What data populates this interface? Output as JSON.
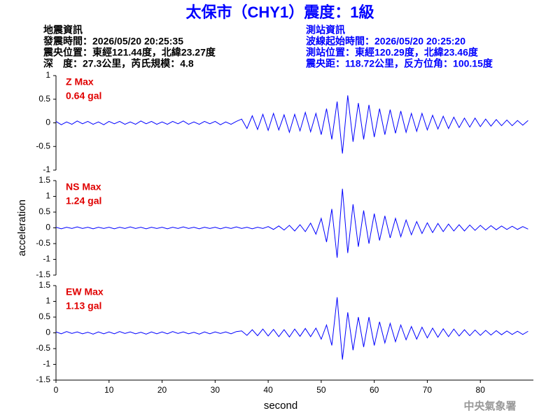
{
  "header": {
    "title": "太保市（CHY1）震度：1級",
    "left": [
      "地震資訊",
      "發震時間：2026/05/20 20:25:35",
      "震央位置：東經121.44度，北緯23.27度",
      "深　度：27.3公里，芮氏規模：4.8"
    ],
    "right": [
      "測站資訊",
      "波線起始時間：2026/05/20 20:25:20",
      "測站位置：東經120.29度，北緯23.46度",
      "震央距：118.72公里，反方位角：100.15度"
    ]
  },
  "footer": "中央氣象署",
  "chart_data": [
    {
      "type": "line",
      "annotations": [
        "Z Max",
        "0.64 gal"
      ],
      "xlim": [
        0,
        90
      ],
      "ylim": [
        -1,
        1
      ],
      "yticks": [
        -1,
        -0.5,
        0,
        0.5,
        1
      ],
      "x": [
        0,
        1,
        2,
        3,
        4,
        5,
        6,
        7,
        8,
        9,
        10,
        11,
        12,
        13,
        14,
        15,
        16,
        17,
        18,
        19,
        20,
        21,
        22,
        23,
        24,
        25,
        26,
        27,
        28,
        29,
        30,
        31,
        32,
        33,
        34,
        35,
        36,
        37,
        38,
        39,
        40,
        41,
        42,
        43,
        44,
        45,
        46,
        47,
        48,
        49,
        50,
        51,
        52,
        53,
        54,
        55,
        56,
        57,
        58,
        59,
        60,
        61,
        62,
        63,
        64,
        65,
        66,
        67,
        68,
        69,
        70,
        71,
        72,
        73,
        74,
        75,
        76,
        77,
        78,
        79,
        80,
        81,
        82,
        83,
        84,
        85,
        86,
        87,
        88,
        89
      ],
      "series": [
        {
          "color": "#0000ff",
          "values": [
            0.03,
            -0.04,
            0.02,
            -0.03,
            0.04,
            -0.02,
            0.03,
            -0.03,
            0.02,
            -0.04,
            0.03,
            -0.02,
            0.03,
            -0.03,
            0.02,
            -0.03,
            0.04,
            -0.02,
            0.03,
            -0.03,
            0.02,
            -0.03,
            0.03,
            -0.02,
            0.04,
            -0.03,
            0.02,
            -0.03,
            0.03,
            -0.02,
            0.03,
            -0.04,
            0.02,
            -0.03,
            0.03,
            0.08,
            -0.12,
            0.15,
            -0.14,
            0.18,
            -0.16,
            0.2,
            -0.15,
            0.17,
            -0.2,
            0.18,
            -0.17,
            0.22,
            -0.19,
            0.2,
            -0.25,
            0.3,
            -0.35,
            0.45,
            -0.65,
            0.58,
            -0.4,
            0.42,
            -0.35,
            0.38,
            -0.3,
            0.3,
            -0.25,
            0.28,
            -0.22,
            0.25,
            -0.2,
            0.2,
            -0.18,
            0.2,
            -0.15,
            0.16,
            -0.13,
            0.14,
            -0.12,
            0.12,
            -0.1,
            0.1,
            -0.09,
            0.1,
            -0.08,
            0.08,
            -0.07,
            0.07,
            -0.06,
            0.06,
            -0.06,
            0.05,
            -0.05,
            0.05
          ]
        }
      ]
    },
    {
      "type": "line",
      "annotations": [
        "NS Max",
        "1.24 gal"
      ],
      "ylabel": "acceleration",
      "xlim": [
        0,
        90
      ],
      "ylim": [
        -1.5,
        1.5
      ],
      "yticks": [
        -1.5,
        -1,
        -0.5,
        0,
        0.5,
        1,
        1.5
      ],
      "x": [
        0,
        1,
        2,
        3,
        4,
        5,
        6,
        7,
        8,
        9,
        10,
        11,
        12,
        13,
        14,
        15,
        16,
        17,
        18,
        19,
        20,
        21,
        22,
        23,
        24,
        25,
        26,
        27,
        28,
        29,
        30,
        31,
        32,
        33,
        34,
        35,
        36,
        37,
        38,
        39,
        40,
        41,
        42,
        43,
        44,
        45,
        46,
        47,
        48,
        49,
        50,
        51,
        52,
        53,
        54,
        55,
        56,
        57,
        58,
        59,
        60,
        61,
        62,
        63,
        64,
        65,
        66,
        67,
        68,
        69,
        70,
        71,
        72,
        73,
        74,
        75,
        76,
        77,
        78,
        79,
        80,
        81,
        82,
        83,
        84,
        85,
        86,
        87,
        88,
        89
      ],
      "series": [
        {
          "color": "#0000ff",
          "values": [
            0.02,
            -0.03,
            0.02,
            -0.02,
            0.03,
            -0.02,
            0.02,
            -0.03,
            0.02,
            -0.02,
            0.02,
            -0.03,
            0.02,
            -0.02,
            0.03,
            -0.02,
            0.02,
            -0.03,
            0.02,
            -0.02,
            0.02,
            -0.03,
            0.02,
            -0.02,
            0.03,
            -0.02,
            0.02,
            -0.03,
            0.02,
            -0.02,
            0.02,
            -0.03,
            0.02,
            -0.02,
            0.03,
            -0.02,
            0.02,
            -0.03,
            0.02,
            -0.02,
            0.04,
            -0.05,
            0.06,
            -0.07,
            0.08,
            -0.1,
            0.1,
            -0.12,
            0.15,
            -0.2,
            0.3,
            -0.45,
            0.6,
            -0.95,
            1.24,
            -0.8,
            0.75,
            -0.6,
            0.55,
            -0.5,
            0.45,
            -0.4,
            0.38,
            -0.32,
            0.3,
            -0.28,
            0.25,
            -0.22,
            0.2,
            -0.18,
            0.16,
            -0.15,
            0.14,
            -0.12,
            0.12,
            -0.1,
            0.1,
            -0.1,
            0.09,
            -0.08,
            0.08,
            -0.07,
            0.07,
            -0.06,
            0.06,
            -0.05,
            0.05,
            -0.05,
            0.04,
            -0.04
          ]
        }
      ]
    },
    {
      "type": "line",
      "annotations": [
        "EW Max",
        "1.13 gal"
      ],
      "xlabel": "second",
      "xlim": [
        0,
        90
      ],
      "ylim": [
        -1.5,
        1.5
      ],
      "yticks": [
        -1.5,
        -1,
        -0.5,
        0,
        0.5,
        1,
        1.5
      ],
      "xticks": [
        0,
        10,
        20,
        30,
        40,
        50,
        60,
        70,
        80
      ],
      "x": [
        0,
        1,
        2,
        3,
        4,
        5,
        6,
        7,
        8,
        9,
        10,
        11,
        12,
        13,
        14,
        15,
        16,
        17,
        18,
        19,
        20,
        21,
        22,
        23,
        24,
        25,
        26,
        27,
        28,
        29,
        30,
        31,
        32,
        33,
        34,
        35,
        36,
        37,
        38,
        39,
        40,
        41,
        42,
        43,
        44,
        45,
        46,
        47,
        48,
        49,
        50,
        51,
        52,
        53,
        54,
        55,
        56,
        57,
        58,
        59,
        60,
        61,
        62,
        63,
        64,
        65,
        66,
        67,
        68,
        69,
        70,
        71,
        72,
        73,
        74,
        75,
        76,
        77,
        78,
        79,
        80,
        81,
        82,
        83,
        84,
        85,
        86,
        87,
        88,
        89
      ],
      "series": [
        {
          "color": "#0000ff",
          "values": [
            0.03,
            -0.03,
            0.04,
            -0.02,
            0.03,
            -0.03,
            0.02,
            -0.04,
            0.03,
            -0.03,
            0.03,
            -0.03,
            0.04,
            -0.02,
            0.03,
            -0.03,
            0.02,
            -0.04,
            0.03,
            -0.03,
            0.03,
            -0.03,
            0.04,
            -0.02,
            0.03,
            -0.03,
            0.02,
            -0.04,
            0.03,
            -0.03,
            0.03,
            -0.02,
            0.03,
            -0.03,
            0.04,
            0.06,
            -0.08,
            0.1,
            -0.09,
            0.12,
            -0.1,
            0.11,
            -0.12,
            0.1,
            -0.13,
            0.12,
            -0.11,
            0.14,
            -0.12,
            0.15,
            -0.2,
            0.25,
            -0.4,
            1.13,
            -0.85,
            0.65,
            -0.55,
            0.5,
            -0.45,
            0.5,
            -0.4,
            0.35,
            -0.32,
            0.3,
            -0.28,
            0.25,
            -0.22,
            0.2,
            -0.2,
            0.18,
            -0.16,
            0.15,
            -0.14,
            0.13,
            -0.12,
            0.12,
            -0.1,
            0.1,
            -0.09,
            0.09,
            -0.08,
            0.08,
            -0.07,
            0.07,
            -0.06,
            0.06,
            -0.05,
            0.05,
            -0.05,
            0.05
          ]
        }
      ]
    }
  ]
}
